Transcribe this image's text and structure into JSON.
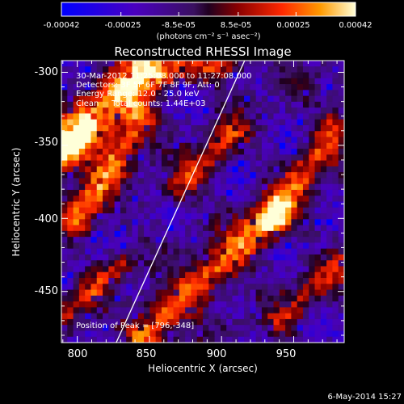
{
  "chart_data": {
    "type": "heatmap",
    "title": "Reconstructed RHESSI Image",
    "xlabel": "Heliocentric X (arcsec)",
    "ylabel": "Heliocentric Y (arcsec)",
    "xlim": [
      789,
      985
    ],
    "ylim": [
      -485,
      -292
    ],
    "x_ticks": [
      800,
      850,
      900,
      950
    ],
    "y_ticks": [
      -300,
      -350,
      -400,
      -450
    ],
    "colorbar": {
      "range": [
        -0.00042,
        0.00042
      ],
      "tick_values": [
        -0.00042,
        -0.00025,
        -8.5e-05,
        8.5e-05,
        0.00025,
        0.00042
      ],
      "tick_labels": [
        "-0.00042",
        "-0.00025",
        "-8.5e-05",
        "8.5e-05",
        "0.00025",
        "0.00042"
      ],
      "unit_label": "(photons cm⁻² s⁻¹ asec⁻²)"
    },
    "annotations": [
      "30-Mar-2012 11:25:08.000 to 11:27:08.000",
      "Detectors: 3F 5F 6F 7F 8F 9F, Att: 0",
      "Energy Range: 12.0 - 25.0 keV",
      "Clean     Total counts: 1.44E+03"
    ],
    "peak_label": "Position of Peak = [796,-348]",
    "peak": [
      796,
      -348
    ],
    "limb_line": [
      [
        827,
        -485
      ],
      [
        916,
        -292
      ]
    ],
    "bright_ridges": [
      {
        "from": [
          789,
          -355
        ],
        "to": [
          845,
          -300
        ],
        "width": 10,
        "strength": 1.0
      },
      {
        "from": [
          800,
          -400
        ],
        "to": [
          845,
          -330
        ],
        "width": 8,
        "strength": 0.75
      },
      {
        "from": [
          845,
          -480
        ],
        "to": [
          935,
          -400
        ],
        "width": 9,
        "strength": 0.8
      },
      {
        "from": [
          935,
          -400
        ],
        "to": [
          985,
          -330
        ],
        "width": 8,
        "strength": 0.65
      },
      {
        "from": [
          860,
          -300
        ],
        "to": [
          905,
          -292
        ],
        "width": 8,
        "strength": 0.6
      },
      {
        "from": [
          870,
          -380
        ],
        "to": [
          910,
          -340
        ],
        "width": 7,
        "strength": 0.55
      },
      {
        "from": [
          940,
          -470
        ],
        "to": [
          985,
          -430
        ],
        "width": 7,
        "strength": 0.45
      },
      {
        "from": [
          789,
          -470
        ],
        "to": [
          830,
          -430
        ],
        "width": 6,
        "strength": 0.5
      }
    ]
  },
  "footer": {
    "date": "6-May-2014 15:27"
  }
}
